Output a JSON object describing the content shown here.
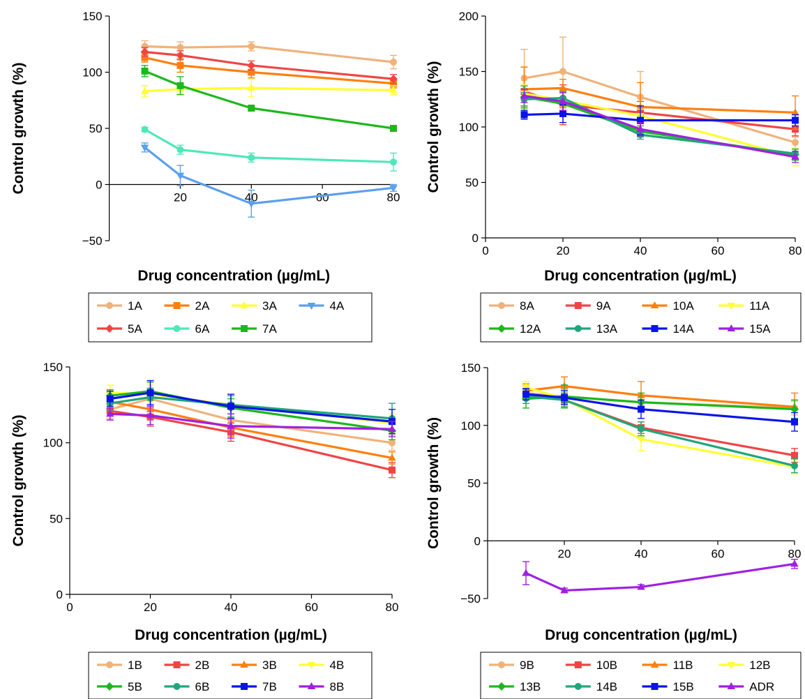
{
  "chart_data": [
    {
      "type": "line",
      "panel": "top-left",
      "xlabel": "Drug concentration (µg/mL)",
      "ylabel": "Control growth (%)",
      "xlim": [
        0,
        80
      ],
      "ylim": [
        -50,
        150
      ],
      "xticks": [
        20,
        40,
        60,
        80
      ],
      "yticks": [
        -50,
        0,
        50,
        100,
        150
      ],
      "xticks_show_zero": false,
      "legend_columns": 4,
      "series": [
        {
          "name": "1A",
          "color": "#f0b27a",
          "marker": "circle",
          "x": [
            10,
            20,
            40,
            80
          ],
          "y": [
            123,
            122,
            123,
            109
          ],
          "err": [
            5,
            5,
            4,
            6
          ]
        },
        {
          "name": "2A",
          "color": "#ff7f0e",
          "marker": "square",
          "x": [
            10,
            20,
            40,
            80
          ],
          "y": [
            113,
            106,
            100,
            90
          ],
          "err": [
            4,
            6,
            5,
            4
          ]
        },
        {
          "name": "3A",
          "color": "#ffff33",
          "marker": "triangle-up",
          "x": [
            10,
            20,
            40,
            80
          ],
          "y": [
            83,
            85,
            86,
            84
          ],
          "err": [
            5,
            4,
            8,
            4
          ]
        },
        {
          "name": "4A",
          "color": "#5aa0ec",
          "marker": "triangle-down",
          "x": [
            10,
            20,
            40,
            80
          ],
          "y": [
            33,
            8,
            -17,
            -3
          ],
          "err": [
            4,
            9,
            12,
            3
          ]
        },
        {
          "name": "5A",
          "color": "#f04444",
          "marker": "diamond",
          "x": [
            10,
            20,
            40,
            80
          ],
          "y": [
            118,
            115,
            106,
            94
          ],
          "err": [
            4,
            4,
            4,
            4
          ]
        },
        {
          "name": "6A",
          "color": "#4fe8b8",
          "marker": "circle",
          "x": [
            10,
            20,
            40,
            80
          ],
          "y": [
            49,
            31,
            24,
            20
          ],
          "err": [
            2,
            4,
            4,
            8
          ]
        },
        {
          "name": "7A",
          "color": "#1cb81c",
          "marker": "square",
          "x": [
            10,
            20,
            40,
            80
          ],
          "y": [
            101,
            88,
            68,
            50
          ],
          "err": [
            5,
            8,
            2,
            2
          ]
        }
      ]
    },
    {
      "type": "line",
      "panel": "top-right",
      "xlabel": "Drug concentration (µg/mL)",
      "ylabel": "Control growth (%)",
      "xlim": [
        0,
        80
      ],
      "ylim": [
        0,
        200
      ],
      "xticks": [
        0,
        20,
        40,
        60,
        80
      ],
      "yticks": [
        0,
        50,
        100,
        150,
        200
      ],
      "xticks_show_zero": true,
      "legend_columns": 4,
      "series": [
        {
          "name": "8A",
          "color": "#f0b27a",
          "marker": "circle",
          "x": [
            10,
            20,
            40,
            80
          ],
          "y": [
            144,
            150,
            127,
            86
          ],
          "err": [
            26,
            31,
            23,
            5
          ]
        },
        {
          "name": "9A",
          "color": "#f04444",
          "marker": "square",
          "x": [
            10,
            20,
            40,
            80
          ],
          "y": [
            132,
            120,
            113,
            98
          ],
          "err": [
            22,
            18,
            10,
            6
          ]
        },
        {
          "name": "10A",
          "color": "#ff7f0e",
          "marker": "triangle-up",
          "x": [
            10,
            20,
            40,
            80
          ],
          "y": [
            134,
            135,
            118,
            113
          ],
          "err": [
            20,
            8,
            22,
            15
          ]
        },
        {
          "name": "11A",
          "color": "#ffff33",
          "marker": "triangle-down",
          "x": [
            10,
            20,
            40,
            80
          ],
          "y": [
            130,
            124,
            110,
            73
          ],
          "err": [
            8,
            6,
            6,
            8
          ]
        },
        {
          "name": "12A",
          "color": "#1cb81c",
          "marker": "diamond",
          "x": [
            10,
            20,
            40,
            80
          ],
          "y": [
            127,
            121,
            96,
            75
          ],
          "err": [
            10,
            10,
            5,
            5
          ]
        },
        {
          "name": "13A",
          "color": "#1fa67a",
          "marker": "circle",
          "x": [
            10,
            20,
            40,
            80
          ],
          "y": [
            125,
            126,
            93,
            76
          ],
          "err": [
            6,
            6,
            4,
            4
          ]
        },
        {
          "name": "14A",
          "color": "#0a14e6",
          "marker": "square",
          "x": [
            10,
            20,
            40,
            80
          ],
          "y": [
            111,
            112,
            106,
            106
          ],
          "err": [
            4,
            8,
            13,
            5
          ]
        },
        {
          "name": "15A",
          "color": "#a020e0",
          "marker": "triangle-up",
          "x": [
            10,
            20,
            40,
            80
          ],
          "y": [
            128,
            123,
            98,
            73
          ],
          "err": [
            6,
            8,
            6,
            5
          ]
        }
      ]
    },
    {
      "type": "line",
      "panel": "bottom-left",
      "xlabel": "Drug concentration (µg/mL)",
      "ylabel": "Control growth (%)",
      "xlim": [
        0,
        80
      ],
      "ylim": [
        0,
        150
      ],
      "xticks": [
        0,
        20,
        40,
        60,
        80
      ],
      "yticks": [
        0,
        50,
        100,
        150
      ],
      "xticks_show_zero": true,
      "legend_columns": 4,
      "series": [
        {
          "name": "1B",
          "color": "#f0b27a",
          "marker": "circle",
          "x": [
            10,
            20,
            40,
            80
          ],
          "y": [
            122,
            129,
            115,
            100
          ],
          "err": [
            6,
            6,
            7,
            5
          ]
        },
        {
          "name": "2B",
          "color": "#f04444",
          "marker": "square",
          "x": [
            10,
            20,
            40,
            80
          ],
          "y": [
            121,
            117,
            107,
            82
          ],
          "err": [
            6,
            6,
            6,
            5
          ]
        },
        {
          "name": "3B",
          "color": "#ff7f0e",
          "marker": "triangle-up",
          "x": [
            10,
            20,
            40,
            80
          ],
          "y": [
            127,
            122,
            110,
            90
          ],
          "err": [
            6,
            6,
            6,
            4
          ]
        },
        {
          "name": "4B",
          "color": "#ffff33",
          "marker": "triangle-down",
          "x": [
            10,
            20,
            40,
            80
          ],
          "y": [
            133,
            132,
            125,
            113
          ],
          "err": [
            5,
            6,
            6,
            6
          ]
        },
        {
          "name": "5B",
          "color": "#1cb81c",
          "marker": "diamond",
          "x": [
            10,
            20,
            40,
            80
          ],
          "y": [
            131,
            134,
            123,
            108
          ],
          "err": [
            4,
            6,
            6,
            6
          ]
        },
        {
          "name": "6B",
          "color": "#1fa67a",
          "marker": "circle",
          "x": [
            10,
            20,
            40,
            80
          ],
          "y": [
            126,
            130,
            125,
            116
          ],
          "err": [
            5,
            6,
            6,
            10
          ]
        },
        {
          "name": "7B",
          "color": "#0a14e6",
          "marker": "square",
          "x": [
            10,
            20,
            40,
            80
          ],
          "y": [
            129,
            133,
            124,
            114
          ],
          "err": [
            5,
            8,
            8,
            8
          ]
        },
        {
          "name": "8B",
          "color": "#a020e0",
          "marker": "triangle-up",
          "x": [
            10,
            20,
            40,
            80
          ],
          "y": [
            119,
            118,
            111,
            109
          ],
          "err": [
            4,
            6,
            8,
            5
          ]
        }
      ]
    },
    {
      "type": "line",
      "panel": "bottom-right",
      "xlabel": "Drug concentration (µg/mL)",
      "ylabel": "Control growth (%)",
      "xlim": [
        0,
        80
      ],
      "ylim": [
        -50,
        150
      ],
      "xticks": [
        20,
        40,
        60,
        80
      ],
      "yticks": [
        -50,
        0,
        50,
        100,
        150
      ],
      "xticks_show_zero": false,
      "legend_columns": 4,
      "series": [
        {
          "name": "9B",
          "color": "#f0b27a",
          "marker": "circle",
          "x": [
            10,
            20,
            40,
            80
          ],
          "y": [
            128,
            125,
            120,
            115
          ],
          "err": [
            6,
            6,
            6,
            6
          ]
        },
        {
          "name": "10B",
          "color": "#f04444",
          "marker": "square",
          "x": [
            10,
            20,
            40,
            80
          ],
          "y": [
            127,
            122,
            98,
            74
          ],
          "err": [
            5,
            5,
            5,
            6
          ]
        },
        {
          "name": "11B",
          "color": "#ff7f0e",
          "marker": "triangle-up",
          "x": [
            10,
            20,
            40,
            80
          ],
          "y": [
            130,
            134,
            126,
            116
          ],
          "err": [
            6,
            8,
            12,
            12
          ]
        },
        {
          "name": "12B",
          "color": "#ffff33",
          "marker": "triangle-down",
          "x": [
            10,
            20,
            40,
            80
          ],
          "y": [
            133,
            123,
            88,
            64
          ],
          "err": [
            5,
            6,
            10,
            6
          ]
        },
        {
          "name": "13B",
          "color": "#1cb81c",
          "marker": "diamond",
          "x": [
            10,
            20,
            40,
            80
          ],
          "y": [
            123,
            125,
            120,
            114
          ],
          "err": [
            8,
            10,
            8,
            8
          ]
        },
        {
          "name": "14B",
          "color": "#1fa67a",
          "marker": "circle",
          "x": [
            10,
            20,
            40,
            80
          ],
          "y": [
            125,
            122,
            97,
            65
          ],
          "err": [
            6,
            6,
            6,
            6
          ]
        },
        {
          "name": "15B",
          "color": "#0a14e6",
          "marker": "square",
          "x": [
            10,
            20,
            40,
            80
          ],
          "y": [
            127,
            124,
            114,
            103
          ],
          "err": [
            5,
            6,
            8,
            8
          ]
        },
        {
          "name": "ADR",
          "color": "#a020e0",
          "marker": "triangle-up",
          "x": [
            10,
            20,
            40,
            80
          ],
          "y": [
            -28,
            -43,
            -40,
            -20
          ],
          "err": [
            10,
            2,
            2,
            4
          ]
        }
      ]
    }
  ]
}
